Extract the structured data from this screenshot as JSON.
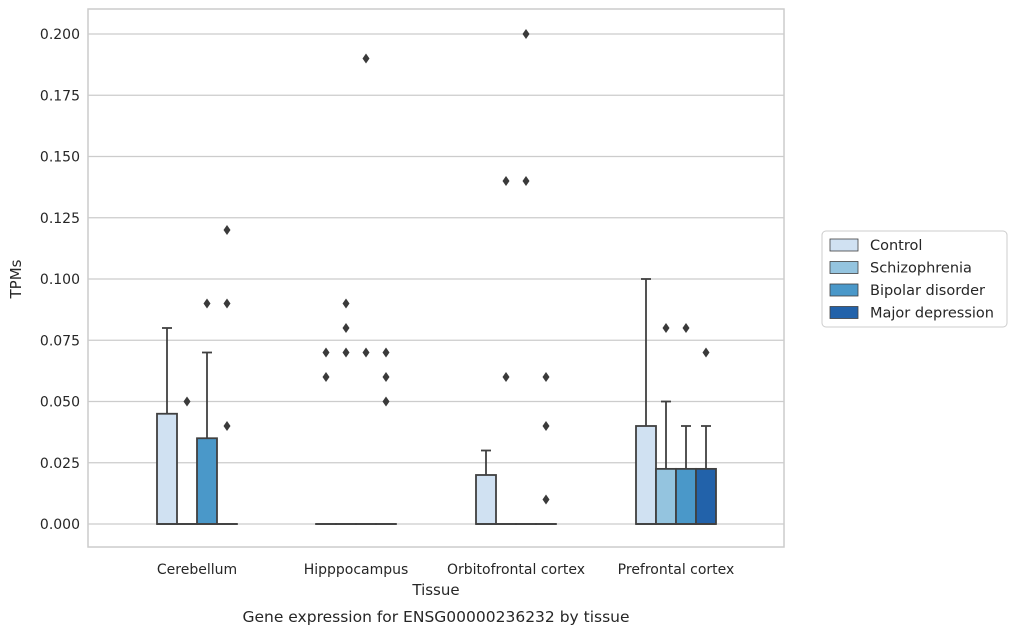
{
  "caption": "Gene expression for ENSG00000236232 by tissue",
  "colors": {
    "Control": "#d0e1f2",
    "Schizophrenia": "#94c4df",
    "Bipolar disorder": "#4a98c9",
    "Major depression": "#2262aa",
    "outline": "#404040",
    "grid": "#cccccc",
    "background": "#ffffff"
  },
  "chart_data": {
    "type": "box",
    "xlabel": "Tissue",
    "ylabel": "TPMs",
    "ylim": [
      -0.01,
      0.21
    ],
    "yticks": [
      0.0,
      0.025,
      0.05,
      0.075,
      0.1,
      0.125,
      0.15,
      0.175,
      0.2
    ],
    "ytick_labels": [
      "0.000",
      "0.025",
      "0.050",
      "0.075",
      "0.100",
      "0.125",
      "0.150",
      "0.175",
      "0.200"
    ],
    "grid": "horizontal",
    "legend_position": "right",
    "categories": [
      "Cerebellum",
      "Hipppocampus",
      "Orbitofrontal cortex",
      "Prefrontal cortex"
    ],
    "series": [
      {
        "name": "Control",
        "boxes": [
          {
            "q1": 0.0,
            "median": 0.0,
            "q3": 0.045,
            "whisker_low": 0.0,
            "whisker_high": 0.08,
            "outliers": []
          },
          {
            "q1": 0.0,
            "median": 0.0,
            "q3": 0.0,
            "whisker_low": 0.0,
            "whisker_high": 0.0,
            "outliers": [
              0.06,
              0.07
            ]
          },
          {
            "q1": 0.0,
            "median": 0.0,
            "q3": 0.02,
            "whisker_low": 0.0,
            "whisker_high": 0.03,
            "outliers": []
          },
          {
            "q1": 0.0,
            "median": 0.0,
            "q3": 0.04,
            "whisker_low": 0.0,
            "whisker_high": 0.1,
            "outliers": []
          }
        ]
      },
      {
        "name": "Schizophrenia",
        "boxes": [
          {
            "q1": 0.0,
            "median": 0.0,
            "q3": 0.0,
            "whisker_low": 0.0,
            "whisker_high": 0.0,
            "outliers": [
              0.05
            ]
          },
          {
            "q1": 0.0,
            "median": 0.0,
            "q3": 0.0,
            "whisker_low": 0.0,
            "whisker_high": 0.0,
            "outliers": [
              0.07,
              0.08,
              0.09
            ]
          },
          {
            "q1": 0.0,
            "median": 0.0,
            "q3": 0.0,
            "whisker_low": 0.0,
            "whisker_high": 0.0,
            "outliers": [
              0.06,
              0.14
            ]
          },
          {
            "q1": 0.0,
            "median": 0.0,
            "q3": 0.0225,
            "whisker_low": 0.0,
            "whisker_high": 0.05,
            "outliers": [
              0.08
            ]
          }
        ]
      },
      {
        "name": "Bipolar disorder",
        "boxes": [
          {
            "q1": 0.0,
            "median": 0.0,
            "q3": 0.035,
            "whisker_low": 0.0,
            "whisker_high": 0.07,
            "outliers": [
              0.09
            ]
          },
          {
            "q1": 0.0,
            "median": 0.0,
            "q3": 0.0,
            "whisker_low": 0.0,
            "whisker_high": 0.0,
            "outliers": [
              0.07,
              0.19
            ]
          },
          {
            "q1": 0.0,
            "median": 0.0,
            "q3": 0.0,
            "whisker_low": 0.0,
            "whisker_high": 0.0,
            "outliers": [
              0.14,
              0.2
            ]
          },
          {
            "q1": 0.0,
            "median": 0.0,
            "q3": 0.0225,
            "whisker_low": 0.0,
            "whisker_high": 0.04,
            "outliers": [
              0.08
            ]
          }
        ]
      },
      {
        "name": "Major depression",
        "boxes": [
          {
            "q1": 0.0,
            "median": 0.0,
            "q3": 0.0,
            "whisker_low": 0.0,
            "whisker_high": 0.0,
            "outliers": [
              0.04,
              0.09,
              0.12
            ]
          },
          {
            "q1": 0.0,
            "median": 0.0,
            "q3": 0.0,
            "whisker_low": 0.0,
            "whisker_high": 0.0,
            "outliers": [
              0.05,
              0.06,
              0.07
            ]
          },
          {
            "q1": 0.0,
            "median": 0.0,
            "q3": 0.0,
            "whisker_low": 0.0,
            "whisker_high": 0.0,
            "outliers": [
              0.01,
              0.04,
              0.06
            ]
          },
          {
            "q1": 0.0,
            "median": 0.0,
            "q3": 0.0225,
            "whisker_low": 0.0,
            "whisker_high": 0.04,
            "outliers": [
              0.07
            ]
          }
        ]
      }
    ]
  }
}
